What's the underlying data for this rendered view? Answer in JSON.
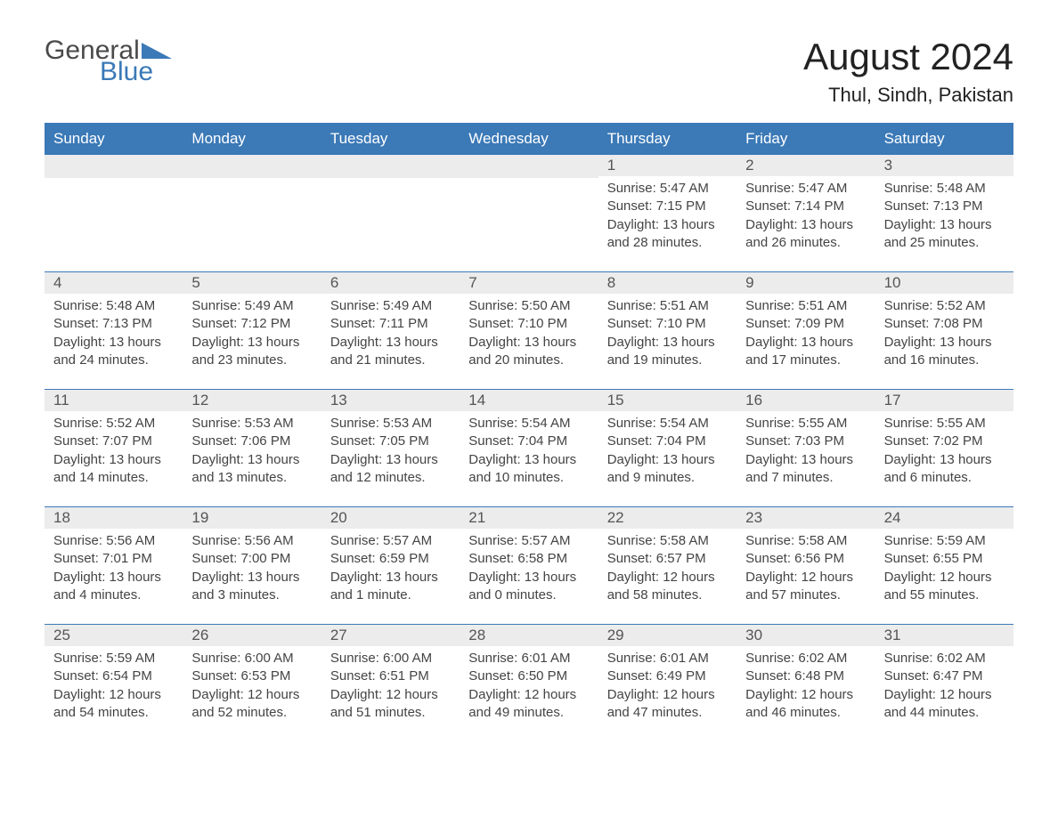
{
  "logo": {
    "part1": "General",
    "part2": "Blue"
  },
  "title": "August 2024",
  "location": "Thul, Sindh, Pakistan",
  "colors": {
    "header_bg": "#3b79b7",
    "header_text": "#ffffff",
    "daynum_bg": "#ececec",
    "border": "#3b79b7",
    "logo_blue": "#3b79b7",
    "logo_grey": "#4a4a4a"
  },
  "weekdays": [
    "Sunday",
    "Monday",
    "Tuesday",
    "Wednesday",
    "Thursday",
    "Friday",
    "Saturday"
  ],
  "weeks": [
    [
      {
        "day": "",
        "sunrise": "",
        "sunset": "",
        "daylight": ""
      },
      {
        "day": "",
        "sunrise": "",
        "sunset": "",
        "daylight": ""
      },
      {
        "day": "",
        "sunrise": "",
        "sunset": "",
        "daylight": ""
      },
      {
        "day": "",
        "sunrise": "",
        "sunset": "",
        "daylight": ""
      },
      {
        "day": "1",
        "sunrise": "Sunrise: 5:47 AM",
        "sunset": "Sunset: 7:15 PM",
        "daylight": "Daylight: 13 hours and 28 minutes."
      },
      {
        "day": "2",
        "sunrise": "Sunrise: 5:47 AM",
        "sunset": "Sunset: 7:14 PM",
        "daylight": "Daylight: 13 hours and 26 minutes."
      },
      {
        "day": "3",
        "sunrise": "Sunrise: 5:48 AM",
        "sunset": "Sunset: 7:13 PM",
        "daylight": "Daylight: 13 hours and 25 minutes."
      }
    ],
    [
      {
        "day": "4",
        "sunrise": "Sunrise: 5:48 AM",
        "sunset": "Sunset: 7:13 PM",
        "daylight": "Daylight: 13 hours and 24 minutes."
      },
      {
        "day": "5",
        "sunrise": "Sunrise: 5:49 AM",
        "sunset": "Sunset: 7:12 PM",
        "daylight": "Daylight: 13 hours and 23 minutes."
      },
      {
        "day": "6",
        "sunrise": "Sunrise: 5:49 AM",
        "sunset": "Sunset: 7:11 PM",
        "daylight": "Daylight: 13 hours and 21 minutes."
      },
      {
        "day": "7",
        "sunrise": "Sunrise: 5:50 AM",
        "sunset": "Sunset: 7:10 PM",
        "daylight": "Daylight: 13 hours and 20 minutes."
      },
      {
        "day": "8",
        "sunrise": "Sunrise: 5:51 AM",
        "sunset": "Sunset: 7:10 PM",
        "daylight": "Daylight: 13 hours and 19 minutes."
      },
      {
        "day": "9",
        "sunrise": "Sunrise: 5:51 AM",
        "sunset": "Sunset: 7:09 PM",
        "daylight": "Daylight: 13 hours and 17 minutes."
      },
      {
        "day": "10",
        "sunrise": "Sunrise: 5:52 AM",
        "sunset": "Sunset: 7:08 PM",
        "daylight": "Daylight: 13 hours and 16 minutes."
      }
    ],
    [
      {
        "day": "11",
        "sunrise": "Sunrise: 5:52 AM",
        "sunset": "Sunset: 7:07 PM",
        "daylight": "Daylight: 13 hours and 14 minutes."
      },
      {
        "day": "12",
        "sunrise": "Sunrise: 5:53 AM",
        "sunset": "Sunset: 7:06 PM",
        "daylight": "Daylight: 13 hours and 13 minutes."
      },
      {
        "day": "13",
        "sunrise": "Sunrise: 5:53 AM",
        "sunset": "Sunset: 7:05 PM",
        "daylight": "Daylight: 13 hours and 12 minutes."
      },
      {
        "day": "14",
        "sunrise": "Sunrise: 5:54 AM",
        "sunset": "Sunset: 7:04 PM",
        "daylight": "Daylight: 13 hours and 10 minutes."
      },
      {
        "day": "15",
        "sunrise": "Sunrise: 5:54 AM",
        "sunset": "Sunset: 7:04 PM",
        "daylight": "Daylight: 13 hours and 9 minutes."
      },
      {
        "day": "16",
        "sunrise": "Sunrise: 5:55 AM",
        "sunset": "Sunset: 7:03 PM",
        "daylight": "Daylight: 13 hours and 7 minutes."
      },
      {
        "day": "17",
        "sunrise": "Sunrise: 5:55 AM",
        "sunset": "Sunset: 7:02 PM",
        "daylight": "Daylight: 13 hours and 6 minutes."
      }
    ],
    [
      {
        "day": "18",
        "sunrise": "Sunrise: 5:56 AM",
        "sunset": "Sunset: 7:01 PM",
        "daylight": "Daylight: 13 hours and 4 minutes."
      },
      {
        "day": "19",
        "sunrise": "Sunrise: 5:56 AM",
        "sunset": "Sunset: 7:00 PM",
        "daylight": "Daylight: 13 hours and 3 minutes."
      },
      {
        "day": "20",
        "sunrise": "Sunrise: 5:57 AM",
        "sunset": "Sunset: 6:59 PM",
        "daylight": "Daylight: 13 hours and 1 minute."
      },
      {
        "day": "21",
        "sunrise": "Sunrise: 5:57 AM",
        "sunset": "Sunset: 6:58 PM",
        "daylight": "Daylight: 13 hours and 0 minutes."
      },
      {
        "day": "22",
        "sunrise": "Sunrise: 5:58 AM",
        "sunset": "Sunset: 6:57 PM",
        "daylight": "Daylight: 12 hours and 58 minutes."
      },
      {
        "day": "23",
        "sunrise": "Sunrise: 5:58 AM",
        "sunset": "Sunset: 6:56 PM",
        "daylight": "Daylight: 12 hours and 57 minutes."
      },
      {
        "day": "24",
        "sunrise": "Sunrise: 5:59 AM",
        "sunset": "Sunset: 6:55 PM",
        "daylight": "Daylight: 12 hours and 55 minutes."
      }
    ],
    [
      {
        "day": "25",
        "sunrise": "Sunrise: 5:59 AM",
        "sunset": "Sunset: 6:54 PM",
        "daylight": "Daylight: 12 hours and 54 minutes."
      },
      {
        "day": "26",
        "sunrise": "Sunrise: 6:00 AM",
        "sunset": "Sunset: 6:53 PM",
        "daylight": "Daylight: 12 hours and 52 minutes."
      },
      {
        "day": "27",
        "sunrise": "Sunrise: 6:00 AM",
        "sunset": "Sunset: 6:51 PM",
        "daylight": "Daylight: 12 hours and 51 minutes."
      },
      {
        "day": "28",
        "sunrise": "Sunrise: 6:01 AM",
        "sunset": "Sunset: 6:50 PM",
        "daylight": "Daylight: 12 hours and 49 minutes."
      },
      {
        "day": "29",
        "sunrise": "Sunrise: 6:01 AM",
        "sunset": "Sunset: 6:49 PM",
        "daylight": "Daylight: 12 hours and 47 minutes."
      },
      {
        "day": "30",
        "sunrise": "Sunrise: 6:02 AM",
        "sunset": "Sunset: 6:48 PM",
        "daylight": "Daylight: 12 hours and 46 minutes."
      },
      {
        "day": "31",
        "sunrise": "Sunrise: 6:02 AM",
        "sunset": "Sunset: 6:47 PM",
        "daylight": "Daylight: 12 hours and 44 minutes."
      }
    ]
  ]
}
